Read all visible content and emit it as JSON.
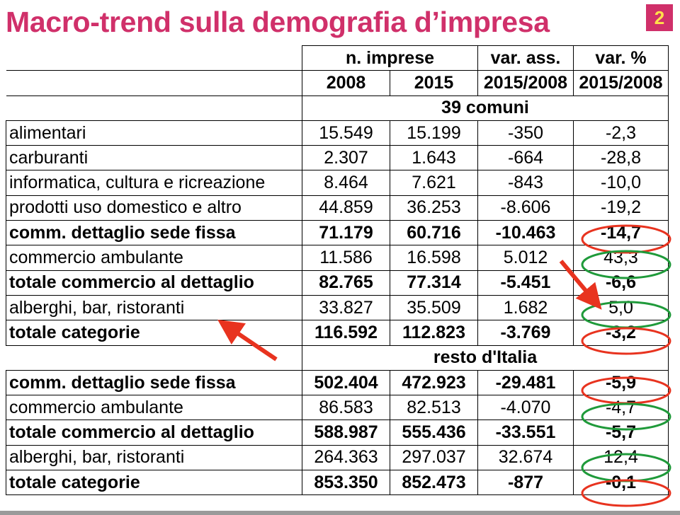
{
  "title": "Macro-trend sulla demografia d’impresa",
  "page_number": "2",
  "header": {
    "group1": "n. imprese",
    "group2": "var. ass.",
    "group3": "var. %",
    "col_2008": "2008",
    "col_2015": "2015",
    "col_var_ass": "2015/2008",
    "col_var_pct": "2015/2008"
  },
  "sections": [
    {
      "title": "39 comuni",
      "rows": [
        {
          "label": "alimentari",
          "v2008": "15.549",
          "v2015": "15.199",
          "ass": "-350",
          "pct": "-2,3",
          "bold": false
        },
        {
          "label": "carburanti",
          "v2008": "2.307",
          "v2015": "1.643",
          "ass": "-664",
          "pct": "-28,8",
          "bold": false
        },
        {
          "label": "informatica, cultura e ricreazione",
          "v2008": "8.464",
          "v2015": "7.621",
          "ass": "-843",
          "pct": "-10,0",
          "bold": false
        },
        {
          "label": "prodotti uso domestico e altro",
          "v2008": "44.859",
          "v2015": "36.253",
          "ass": "-8.606",
          "pct": "-19,2",
          "bold": false
        },
        {
          "label": "comm. dettaglio sede fissa",
          "v2008": "71.179",
          "v2015": "60.716",
          "ass": "-10.463",
          "pct": "-14,7",
          "bold": true
        },
        {
          "label": "commercio ambulante",
          "v2008": "11.586",
          "v2015": "16.598",
          "ass": "5.012",
          "pct": "43,3",
          "bold": false
        },
        {
          "label": "totale commercio al dettaglio",
          "v2008": "82.765",
          "v2015": "77.314",
          "ass": "-5.451",
          "pct": "-6,6",
          "bold": true
        },
        {
          "label": "alberghi, bar, ristoranti",
          "v2008": "33.827",
          "v2015": "35.509",
          "ass": "1.682",
          "pct": "5,0",
          "bold": false
        },
        {
          "label": "totale categorie",
          "v2008": "116.592",
          "v2015": "112.823",
          "ass": "-3.769",
          "pct": "-3,2",
          "bold": true
        }
      ]
    },
    {
      "title": "resto d'Italia",
      "rows": [
        {
          "label": "comm. dettaglio sede fissa",
          "v2008": "502.404",
          "v2015": "472.923",
          "ass": "-29.481",
          "pct": "-5,9",
          "bold": true
        },
        {
          "label": "commercio ambulante",
          "v2008": "86.583",
          "v2015": "82.513",
          "ass": "-4.070",
          "pct": "-4,7",
          "bold": false
        },
        {
          "label": "totale commercio al dettaglio",
          "v2008": "588.987",
          "v2015": "555.436",
          "ass": "-33.551",
          "pct": "-5,7",
          "bold": true
        },
        {
          "label": "alberghi, bar, ristoranti",
          "v2008": "264.363",
          "v2015": "297.037",
          "ass": "32.674",
          "pct": "12,4",
          "bold": false
        },
        {
          "label": "totale categorie",
          "v2008": "853.350",
          "v2015": "852.473",
          "ass": "-877",
          "pct": "-0,1",
          "bold": true
        }
      ]
    }
  ],
  "colors": {
    "title": "#d0306a",
    "page_number_bg": "#d0306a",
    "page_number_text": "#ffe04a",
    "red_marker": "#e8331f",
    "green_marker": "#1f9a3a"
  },
  "annotations": [
    {
      "kind": "ellipse",
      "color": "red",
      "target": "39 comuni / comm. dettaglio sede fissa / var. %"
    },
    {
      "kind": "ellipse",
      "color": "green",
      "target": "39 comuni / commercio ambulante / var. %"
    },
    {
      "kind": "ellipse",
      "color": "green",
      "target": "39 comuni / alberghi, bar, ristoranti / var. %"
    },
    {
      "kind": "ellipse",
      "color": "red",
      "target": "39 comuni / totale categorie / var. %"
    },
    {
      "kind": "ellipse",
      "color": "red",
      "target": "resto d'Italia / comm. dettaglio sede fissa / var. %"
    },
    {
      "kind": "ellipse",
      "color": "green",
      "target": "resto d'Italia / commercio ambulante / var. %"
    },
    {
      "kind": "ellipse",
      "color": "green",
      "target": "resto d'Italia / alberghi, bar, ristoranti / var. %"
    },
    {
      "kind": "ellipse",
      "color": "red",
      "target": "resto d'Italia / totale categorie / var. %"
    },
    {
      "kind": "arrow",
      "color": "red",
      "target": "39 comuni / alberghi, bar, ristoranti / label"
    },
    {
      "kind": "arrow",
      "color": "red",
      "target": "39 comuni / alberghi, bar, ristoranti / var. %"
    }
  ]
}
